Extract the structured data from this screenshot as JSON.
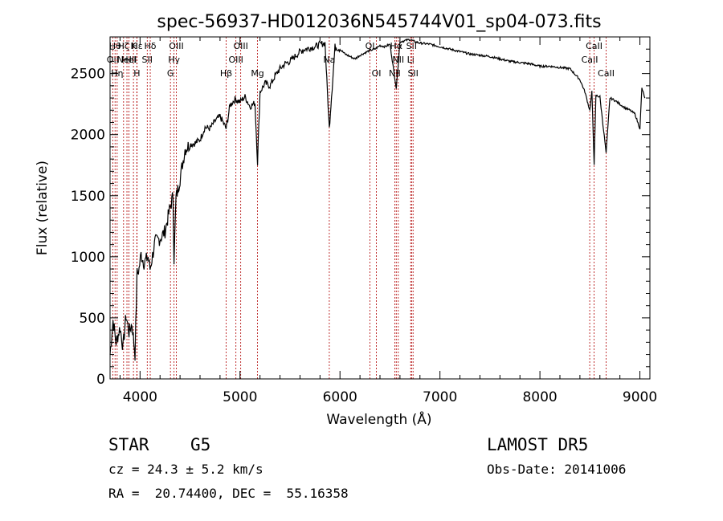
{
  "chart_data": {
    "type": "line",
    "title": "spec-56937-HD012036N545744V01_sp04-073.fits",
    "xlabel": "Wavelength (Å)",
    "ylabel": "Flux (relative)",
    "xlim": [
      3700,
      9100
    ],
    "ylim": [
      0,
      2800
    ],
    "xticks": [
      4000,
      5000,
      6000,
      7000,
      8000,
      9000
    ],
    "yticks": [
      0,
      500,
      1000,
      1500,
      2000,
      2500
    ],
    "grid": false,
    "series": [
      {
        "x": [
          3700,
          3730,
          3760,
          3800,
          3830,
          3860,
          3890,
          3920,
          3950,
          3970,
          3990,
          4010,
          4040,
          4080,
          4100,
          4150,
          4200,
          4250,
          4300,
          4330,
          4340,
          4360,
          4400,
          4450,
          4500,
          4550,
          4600,
          4650,
          4700,
          4750,
          4800,
          4861,
          4900,
          4950,
          5000,
          5050,
          5100,
          5150,
          5175,
          5200,
          5250,
          5300,
          5350,
          5400,
          5450,
          5500,
          5550,
          5600,
          5650,
          5700,
          5750,
          5800,
          5850,
          5893,
          5950,
          6000,
          6050,
          6100,
          6150,
          6200,
          6250,
          6300,
          6350,
          6400,
          6450,
          6500,
          6563,
          6600,
          6650,
          6700,
          6750,
          6800,
          6900,
          7000,
          7100,
          7200,
          7300,
          7400,
          7500,
          7600,
          7700,
          7800,
          7900,
          8000,
          8100,
          8200,
          8300,
          8400,
          8450,
          8498,
          8520,
          8542,
          8560,
          8600,
          8662,
          8700,
          8750,
          8800,
          8850,
          8900,
          8950,
          9000,
          9020,
          9050
        ],
        "values": [
          200,
          480,
          300,
          420,
          260,
          520,
          380,
          450,
          200,
          860,
          900,
          1020,
          950,
          1000,
          900,
          1120,
          1150,
          1210,
          1400,
          1500,
          980,
          1480,
          1640,
          1880,
          1920,
          1930,
          1960,
          2060,
          2050,
          2110,
          2150,
          2050,
          2240,
          2290,
          2270,
          2310,
          2230,
          2260,
          1770,
          2350,
          2420,
          2400,
          2480,
          2540,
          2580,
          2600,
          2640,
          2680,
          2700,
          2710,
          2720,
          2740,
          2750,
          2050,
          2720,
          2700,
          2660,
          2640,
          2620,
          2650,
          2670,
          2690,
          2700,
          2730,
          2720,
          2740,
          2380,
          2760,
          2770,
          2780,
          2760,
          2750,
          2740,
          2720,
          2700,
          2680,
          2660,
          2650,
          2640,
          2620,
          2600,
          2590,
          2580,
          2560,
          2560,
          2550,
          2540,
          2450,
          2350,
          2200,
          2350,
          1760,
          2320,
          2310,
          1850,
          2300,
          2280,
          2250,
          2220,
          2200,
          2170,
          2050,
          2380,
          2300
        ]
      }
    ],
    "line_marks": [
      {
        "wl": 3727,
        "label": "OII",
        "row": 2
      },
      {
        "wl": 3750,
        "label": "Hθ",
        "row": 1
      },
      {
        "wl": 3771,
        "label": "Hη",
        "row": 3
      },
      {
        "wl": 3835,
        "label": "Hζ",
        "row": 1
      },
      {
        "wl": 3869,
        "label": "NeIII",
        "row": 2
      },
      {
        "wl": 3889,
        "label": "HeI",
        "row": 2
      },
      {
        "wl": 3934,
        "label": "K",
        "row": 1
      },
      {
        "wl": 3968,
        "label": "H",
        "row": 3
      },
      {
        "wl": 3970,
        "label": "Hε",
        "row": 1
      },
      {
        "wl": 4072,
        "label": "SII",
        "row": 2
      },
      {
        "wl": 4102,
        "label": "Hδ",
        "row": 1
      },
      {
        "wl": 4304,
        "label": "G",
        "row": 3
      },
      {
        "wl": 4340,
        "label": "Hγ",
        "row": 2
      },
      {
        "wl": 4363,
        "label": "OIII",
        "row": 1
      },
      {
        "wl": 4861,
        "label": "Hβ",
        "row": 3
      },
      {
        "wl": 4959,
        "label": "OIII",
        "row": 2
      },
      {
        "wl": 5007,
        "label": "OIII",
        "row": 1
      },
      {
        "wl": 5175,
        "label": "Mg",
        "row": 3
      },
      {
        "wl": 5893,
        "label": "Na",
        "row": 2
      },
      {
        "wl": 6300,
        "label": "OI",
        "row": 1
      },
      {
        "wl": 6364,
        "label": "OI",
        "row": 3
      },
      {
        "wl": 6548,
        "label": "NII",
        "row": 3
      },
      {
        "wl": 6563,
        "label": "Hα",
        "row": 1
      },
      {
        "wl": 6583,
        "label": "NII",
        "row": 2
      },
      {
        "wl": 6707,
        "label": "Li",
        "row": 2
      },
      {
        "wl": 6716,
        "label": "SII",
        "row": 1
      },
      {
        "wl": 6731,
        "label": "SII",
        "row": 3
      },
      {
        "wl": 8498,
        "label": "CaII",
        "row": 2
      },
      {
        "wl": 8542,
        "label": "CaII",
        "row": 1
      },
      {
        "wl": 8662,
        "label": "CaII",
        "row": 3
      }
    ]
  },
  "info": {
    "class_label": "STAR",
    "subclass_label": "G5",
    "survey": "LAMOST DR5",
    "velocity": "cz = 24.3 ± 5.2 km/s",
    "obs_date": "Obs-Date: 20141006",
    "coords": "RA =  20.74400, DEC =  55.16358"
  }
}
